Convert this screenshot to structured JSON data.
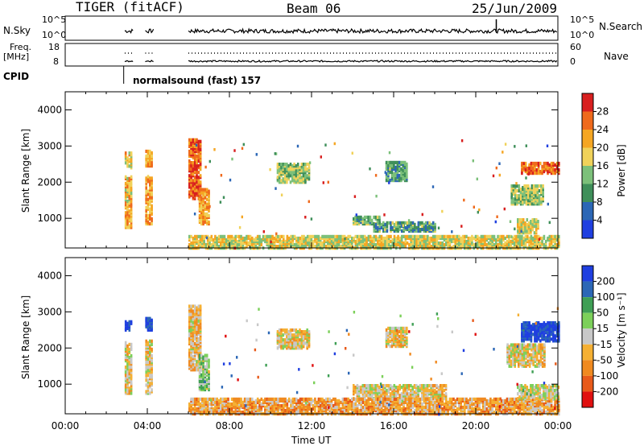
{
  "header": {
    "station": "TIGER (fitACF)",
    "beam": "Beam 06",
    "date": "25/Jun/2009"
  },
  "panels": {
    "nsky": {
      "label": "N.Sky",
      "tick_top": "10^5",
      "tick_bottom": "10^0",
      "right_label": "N.Search",
      "right_tick_top": "10^5",
      "right_tick_bottom": "10^0"
    },
    "freq": {
      "label_line1": "Freq.",
      "label_line2": "[MHz]",
      "tick_top": "18",
      "tick_bottom": "8",
      "right_label": "Nave",
      "right_tick_top": "60",
      "right_tick_bottom": "0"
    },
    "cpid": {
      "label": "CPID",
      "text": "normalsound (fast) 157"
    }
  },
  "chart_data": [
    {
      "type": "heatmap",
      "name": "Power",
      "ylabel": "Slant Range [km]",
      "yticks": [
        "1000",
        "2000",
        "3000",
        "4000"
      ],
      "ylim": [
        180,
        4500
      ],
      "colorbar_label": "Power [dB]",
      "colorbar_ticks": [
        "4",
        "8",
        "12",
        "16",
        "20",
        "24",
        "28"
      ],
      "colorbar_colors": [
        "#1f3fe0",
        "#2c67b6",
        "#3f8f5a",
        "#7cc07a",
        "#f0d25a",
        "#f5a623",
        "#ef6a1c",
        "#d81f1f"
      ],
      "xlim_hours": [
        0,
        24
      ],
      "regions": [
        {
          "t0": 2.9,
          "t1": 3.2,
          "r0": 750,
          "r1": 2150,
          "level": 0.65
        },
        {
          "t0": 2.9,
          "t1": 3.2,
          "r0": 2400,
          "r1": 2850,
          "level": 0.6
        },
        {
          "t0": 3.9,
          "t1": 4.2,
          "r0": 850,
          "r1": 2200,
          "level": 0.7
        },
        {
          "t0": 3.9,
          "t1": 4.2,
          "r0": 2450,
          "r1": 2900,
          "level": 0.7
        },
        {
          "t0": 6.0,
          "t1": 6.6,
          "r0": 1550,
          "r1": 3200,
          "level": 0.85
        },
        {
          "t0": 6.5,
          "t1": 7.0,
          "r0": 850,
          "r1": 1800,
          "level": 0.7
        },
        {
          "t0": 10.3,
          "t1": 11.9,
          "r0": 2000,
          "r1": 2500,
          "level": 0.45
        },
        {
          "t0": 15.6,
          "t1": 16.6,
          "r0": 2050,
          "r1": 2550,
          "level": 0.35
        },
        {
          "t0": 14.0,
          "t1": 15.3,
          "r0": 850,
          "r1": 1050,
          "level": 0.4
        },
        {
          "t0": 15.0,
          "t1": 18.0,
          "r0": 650,
          "r1": 900,
          "level": 0.35
        },
        {
          "t0": 6.0,
          "t1": 24.0,
          "r0": 180,
          "r1": 520,
          "level": 0.55
        },
        {
          "t0": 22.2,
          "t1": 24.0,
          "r0": 2250,
          "r1": 2550,
          "level": 0.8
        },
        {
          "t0": 21.7,
          "t1": 23.3,
          "r0": 1400,
          "r1": 1900,
          "level": 0.45
        },
        {
          "t0": 22.0,
          "t1": 23.0,
          "r0": 600,
          "r1": 1000,
          "level": 0.55
        }
      ]
    },
    {
      "type": "heatmap",
      "name": "Velocity",
      "ylabel": "Slant Range [km]",
      "yticks": [
        "1000",
        "2000",
        "3000",
        "4000"
      ],
      "ylim": [
        180,
        4500
      ],
      "colorbar_label": "Velocity [m s⁻¹]",
      "colorbar_ticks": [
        "200",
        "100",
        "50",
        "15",
        "-15",
        "-50",
        "-100",
        "-200"
      ],
      "colorbar_colors": [
        "#1f3fe0",
        "#2c67b6",
        "#3f9f55",
        "#7cd05a",
        "#c8c8c8",
        "#f5b033",
        "#f08a20",
        "#e85a1a",
        "#e01010"
      ],
      "xlabel": "Time UT",
      "xticks": [
        "00:00",
        "04:00",
        "08:00",
        "12:00",
        "16:00",
        "20:00",
        "00:00"
      ],
      "xlim_hours": [
        0,
        24
      ],
      "regions": [
        {
          "t0": 2.9,
          "t1": 3.2,
          "r0": 2500,
          "r1": 2750,
          "level": 0.95
        },
        {
          "t0": 3.9,
          "t1": 4.2,
          "r0": 2500,
          "r1": 2850,
          "level": 0.95
        },
        {
          "t0": 2.9,
          "t1": 3.2,
          "r0": 750,
          "r1": 2150,
          "level": 0.45
        },
        {
          "t0": 3.9,
          "t1": 4.2,
          "r0": 750,
          "r1": 2200,
          "level": 0.45
        },
        {
          "t0": 6.0,
          "t1": 6.6,
          "r0": 1400,
          "r1": 3200,
          "level": 0.4
        },
        {
          "t0": 6.5,
          "t1": 7.0,
          "r0": 850,
          "r1": 1800,
          "level": 0.6
        },
        {
          "t0": 10.3,
          "t1": 11.9,
          "r0": 2000,
          "r1": 2500,
          "level": 0.45
        },
        {
          "t0": 15.6,
          "t1": 16.6,
          "r0": 2050,
          "r1": 2550,
          "level": 0.45
        },
        {
          "t0": 14.0,
          "t1": 18.5,
          "r0": 600,
          "r1": 1000,
          "level": 0.45
        },
        {
          "t0": 6.0,
          "t1": 24.0,
          "r0": 180,
          "r1": 600,
          "level": 0.35
        },
        {
          "t0": 22.2,
          "t1": 24.0,
          "r0": 2200,
          "r1": 2700,
          "level": 0.95
        },
        {
          "t0": 21.5,
          "t1": 23.3,
          "r0": 1500,
          "r1": 2100,
          "level": 0.45
        },
        {
          "t0": 22.0,
          "t1": 24.0,
          "r0": 600,
          "r1": 1000,
          "level": 0.5
        }
      ]
    }
  ]
}
